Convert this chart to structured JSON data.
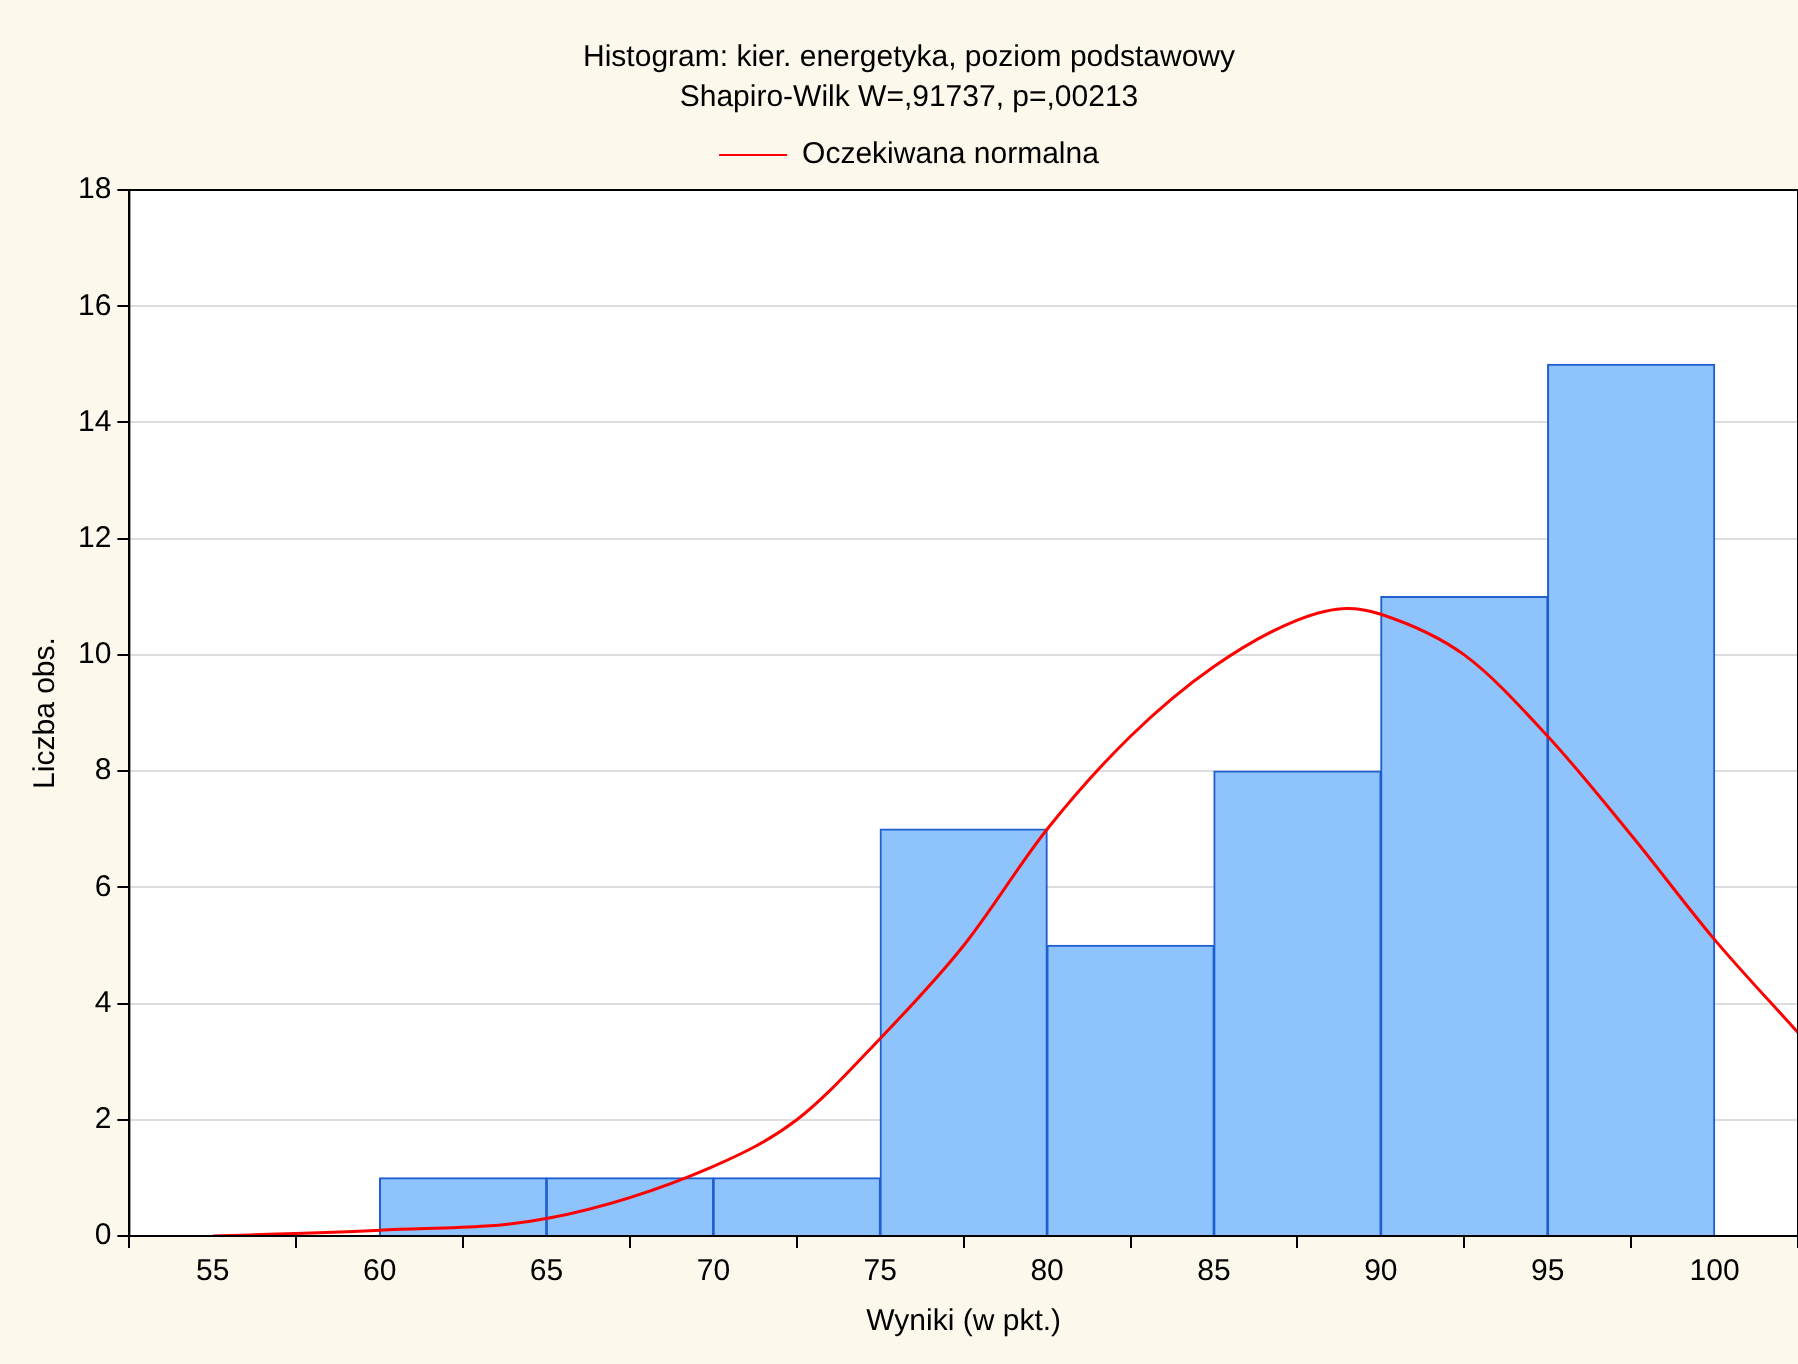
{
  "chart_data": {
    "type": "histogram",
    "title": "Histogram: kier. energetyka, poziom podstawowy",
    "subtitle": "Shapiro-Wilk W=,91737, p=,00213",
    "xlabel": "Wyniki (w pkt.)",
    "ylabel": "Liczba obs.",
    "bins": [
      60,
      65,
      70,
      75,
      80,
      85,
      90,
      95,
      100
    ],
    "values": [
      1,
      1,
      1,
      7,
      5,
      8,
      11,
      15
    ],
    "color": "#8ec3fb",
    "series": [
      {
        "name": "Oczekiwana normalna",
        "type": "line",
        "color": "#ff0000",
        "x": [
          55,
          60,
          65,
          70,
          72.5,
          75,
          77.5,
          80,
          82.5,
          85,
          87.5,
          89,
          90,
          92.5,
          95,
          97.5,
          100,
          102.5
        ],
        "values": [
          0.0,
          0.1,
          0.3,
          1.2,
          2.0,
          3.4,
          5.0,
          7.0,
          8.6,
          9.8,
          10.6,
          10.8,
          10.7,
          10.0,
          8.6,
          6.9,
          5.1,
          3.5
        ]
      }
    ],
    "xlim": [
      52.5,
      102.5
    ],
    "xticks": [
      55,
      60,
      65,
      70,
      75,
      80,
      85,
      90,
      95,
      100
    ],
    "ylim": [
      0,
      18
    ],
    "yticks": [
      0,
      2,
      4,
      6,
      8,
      10,
      12,
      14,
      16,
      18
    ],
    "grid": "y",
    "legend": "top",
    "marker": "none",
    "line_style": "solid"
  }
}
